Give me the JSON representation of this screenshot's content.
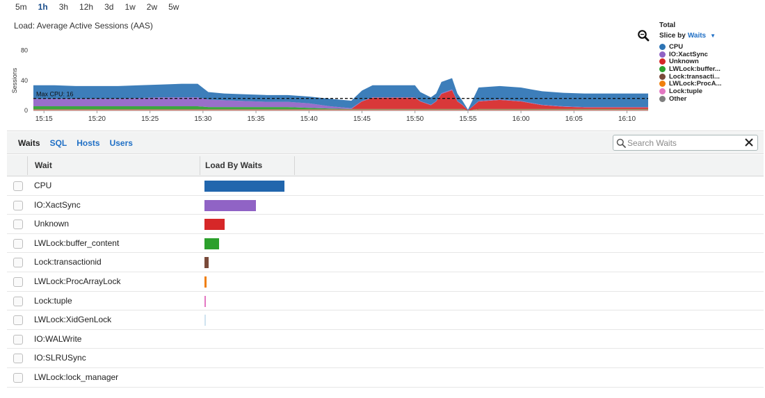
{
  "time_ranges": [
    {
      "label": "5m",
      "active": false
    },
    {
      "label": "1h",
      "active": true
    },
    {
      "label": "3h",
      "active": false
    },
    {
      "label": "12h",
      "active": false
    },
    {
      "label": "3d",
      "active": false
    },
    {
      "label": "1w",
      "active": false
    },
    {
      "label": "2w",
      "active": false
    },
    {
      "label": "5w",
      "active": false
    }
  ],
  "chart_title": "Load: Average Active Sessions (AAS)",
  "legend": {
    "title": "Total",
    "slice_prefix": "Slice by",
    "slice_value": "Waits",
    "items": [
      {
        "label": "CPU",
        "color": "#2c73b4"
      },
      {
        "label": "IO:XactSync",
        "color": "#9063c5"
      },
      {
        "label": "Unknown",
        "color": "#d62728"
      },
      {
        "label": "LWLock:buffer...",
        "color": "#2ca02c"
      },
      {
        "label": "Lock:transacti...",
        "color": "#7a4a3a"
      },
      {
        "label": "LWLock:ProcA...",
        "color": "#f07f0e"
      },
      {
        "label": "Lock:tuple",
        "color": "#e377c2"
      },
      {
        "label": "Other",
        "color": "#7f7f7f"
      }
    ]
  },
  "chart_data": {
    "type": "area",
    "stacked": true,
    "title": "Load: Average Active Sessions (AAS)",
    "ylabel": "Sessions",
    "ylim": [
      0,
      100
    ],
    "yticks": [
      0,
      40,
      80
    ],
    "xtick_labels": [
      "15:15",
      "15:20",
      "15:25",
      "15:30",
      "15:35",
      "15:40",
      "15:45",
      "15:50",
      "15:55",
      "16:00",
      "16:05",
      "16:10"
    ],
    "xtick_minutes": [
      15,
      20,
      25,
      30,
      35,
      40,
      45,
      50,
      55,
      60,
      65,
      70
    ],
    "x_minutes": [
      14,
      16,
      18,
      20,
      22,
      24,
      26,
      28,
      29.5,
      30.5,
      32,
      34,
      36,
      38,
      40,
      42,
      44,
      45,
      46,
      48,
      50,
      50.5,
      51.5,
      52,
      52.5,
      53.5,
      54,
      54.5,
      55,
      56,
      58,
      60,
      62,
      64,
      66,
      68,
      70,
      72
    ],
    "series": [
      {
        "name": "Lock:tuple",
        "values": [
          0.5,
          0.5,
          0.5,
          0.5,
          0.5,
          0.5,
          0.5,
          0.5,
          0.5,
          0.5,
          0.5,
          0.5,
          0.5,
          0.5,
          0.5,
          0.5,
          0.5,
          0.5,
          0.5,
          0.5,
          0.5,
          0.5,
          0.5,
          0.5,
          0.5,
          0.5,
          0.5,
          0.5,
          0,
          0.5,
          0.5,
          0.5,
          0.5,
          0.5,
          0.5,
          0.5,
          0.5,
          0.5
        ]
      },
      {
        "name": "LWLock:ProcA...",
        "values": [
          0.5,
          0.5,
          0.5,
          0.5,
          0.5,
          0.5,
          0.5,
          0.5,
          0.5,
          0.5,
          0.5,
          0.5,
          0.5,
          0.5,
          0.5,
          0.5,
          0.5,
          0.5,
          0.5,
          0.5,
          0.5,
          0.5,
          0.5,
          0.5,
          0.5,
          0.5,
          0.5,
          0.5,
          0,
          0.5,
          0.5,
          0.5,
          0.5,
          0.5,
          0.5,
          0.5,
          0.5,
          0.5
        ]
      },
      {
        "name": "Lock:transacti...",
        "values": [
          0.5,
          0.5,
          0.5,
          0.5,
          0.5,
          0.5,
          0.5,
          0.5,
          0.5,
          0.5,
          0.5,
          0.5,
          0.5,
          0.5,
          0.5,
          0.5,
          0.5,
          0.5,
          0.5,
          0.5,
          0.5,
          0.5,
          0.5,
          0.5,
          0.5,
          0.5,
          0.5,
          0.5,
          0,
          0.5,
          0.5,
          0.5,
          0.5,
          0.5,
          0.5,
          0.5,
          0.5,
          0.5
        ]
      },
      {
        "name": "LWLock:buffer...",
        "values": [
          4,
          4,
          4,
          4,
          4,
          4,
          4,
          4,
          4,
          3,
          3,
          3,
          3,
          3,
          2,
          1,
          0.5,
          0.5,
          0.5,
          0.5,
          0.5,
          0.5,
          0.5,
          0.5,
          0.5,
          0.5,
          0.5,
          0.5,
          0,
          0.5,
          0.5,
          0.5,
          0.5,
          0.5,
          0.5,
          0.5,
          0.5,
          0.5
        ]
      },
      {
        "name": "Unknown",
        "values": [
          0,
          0,
          0,
          0,
          0,
          0,
          0,
          0,
          0,
          0,
          0,
          0,
          0,
          0,
          0,
          0,
          0,
          10,
          15,
          15,
          15,
          10,
          5,
          10,
          20,
          25,
          10,
          5,
          0,
          10,
          12,
          10,
          5,
          3,
          2,
          2,
          2,
          2
        ]
      },
      {
        "name": "IO:XactSync",
        "values": [
          10,
          10,
          10,
          10,
          10,
          11,
          12,
          12,
          12,
          10,
          9,
          8,
          7,
          7,
          6,
          3,
          1,
          0.5,
          0.5,
          0.5,
          0.5,
          0.5,
          0.5,
          0.5,
          1,
          1,
          0.5,
          0.5,
          0,
          0.5,
          0.5,
          0.5,
          0.5,
          0.5,
          0.5,
          0.5,
          0.5,
          0.5
        ]
      },
      {
        "name": "CPU",
        "values": [
          18,
          18,
          17,
          17,
          17,
          17,
          17,
          18,
          18,
          10,
          9,
          9,
          9,
          9,
          9,
          10,
          10,
          14,
          16,
          16,
          16,
          12,
          10,
          10,
          15,
          15,
          10,
          5,
          1,
          18,
          18,
          18,
          18,
          18,
          18,
          18,
          18,
          18
        ]
      },
      {
        "name": "Other",
        "values": [
          0,
          0,
          0,
          0,
          0,
          0,
          0,
          0,
          0,
          0,
          0,
          0,
          0,
          0,
          0,
          0,
          0,
          0,
          0,
          0,
          0,
          0,
          0,
          0,
          0,
          0,
          0,
          0,
          0,
          0,
          0,
          0,
          0,
          0,
          0,
          0,
          0,
          0
        ]
      }
    ],
    "reference_line": {
      "label": "Max CPU: 16",
      "value": 16
    },
    "legend": "right",
    "grid": false
  },
  "tabs": [
    {
      "label": "Waits",
      "active": true
    },
    {
      "label": "SQL",
      "active": false
    },
    {
      "label": "Hosts",
      "active": false
    },
    {
      "label": "Users",
      "active": false
    }
  ],
  "search": {
    "placeholder": "Search Waits",
    "value": ""
  },
  "table": {
    "columns": [
      "Wait",
      "Load By Waits"
    ],
    "rows": [
      {
        "name": "CPU",
        "load": 1.0,
        "color": "#2166ad"
      },
      {
        "name": "IO:XactSync",
        "load": 0.64,
        "color": "#9063c5"
      },
      {
        "name": "Unknown",
        "load": 0.25,
        "color": "#d62728"
      },
      {
        "name": "LWLock:buffer_content",
        "load": 0.18,
        "color": "#2ca02c"
      },
      {
        "name": "Lock:transactionid",
        "load": 0.05,
        "color": "#7a4a3a"
      },
      {
        "name": "LWLock:ProcArrayLock",
        "load": 0.03,
        "color": "#f07f0e"
      },
      {
        "name": "Lock:tuple",
        "load": 0.02,
        "color": "#e377c2"
      },
      {
        "name": "LWLock:XidGenLock",
        "load": 0.01,
        "color": "#cfe3f0"
      },
      {
        "name": "IO:WALWrite",
        "load": 0,
        "color": "#cccccc"
      },
      {
        "name": "IO:SLRUSync",
        "load": 0,
        "color": "#cccccc"
      },
      {
        "name": "LWLock:lock_manager",
        "load": 0,
        "color": "#cccccc"
      }
    ]
  }
}
